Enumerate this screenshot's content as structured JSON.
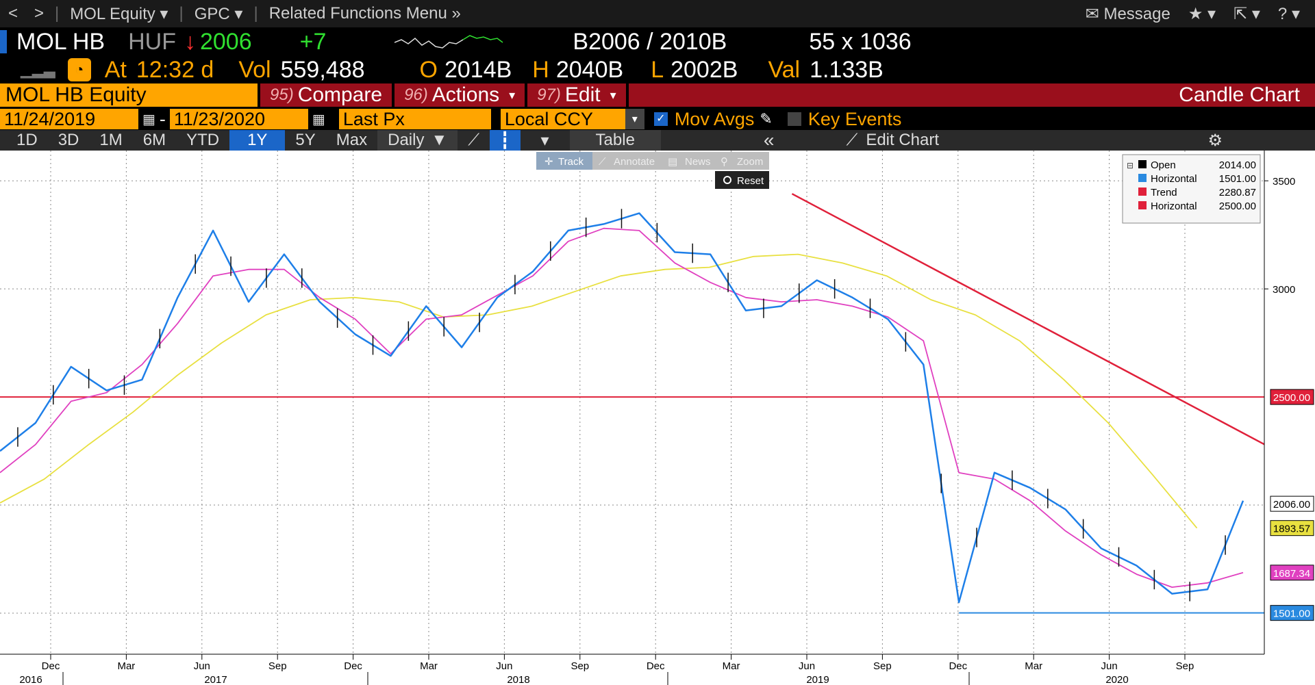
{
  "nav": {
    "back": "<",
    "forward": ">",
    "security": "MOL Equity",
    "function": "GPC",
    "related": "Related Functions Menu",
    "message": "Message",
    "star": "★",
    "export": "⇱",
    "help": "?"
  },
  "quote": {
    "ticker": "MOL HB",
    "currency": "HUF",
    "arrow": "↓",
    "last": "2006",
    "change": "+7",
    "bidask": "B2006 / 2010B",
    "size": "55 x 1036",
    "at": "At",
    "time": "12:32 d",
    "vol_label": "Vol",
    "vol": "559,488",
    "open_label": "O",
    "open": "2014B",
    "high_label": "H",
    "high": "2040B",
    "low_label": "L",
    "low": "2002B",
    "val_label": "Val",
    "val": "1.133B"
  },
  "functions": {
    "equity": "MOL HB Equity",
    "compare_num": "95)",
    "compare": "Compare",
    "actions_num": "96)",
    "actions": "Actions",
    "edit_num": "97)",
    "edit": "Edit",
    "title": "Candle Chart"
  },
  "dates": {
    "start": "11/24/2019",
    "dash": "-",
    "end": "11/23/2020",
    "field": "Last Px",
    "ccy": "Local CCY",
    "mov_avgs": "Mov Avgs",
    "key_events": "Key Events"
  },
  "periods": {
    "items": [
      "1D",
      "3D",
      "1M",
      "6M",
      "YTD",
      "1Y",
      "5Y",
      "Max"
    ],
    "active": "1Y",
    "freq": "Daily",
    "table": "Table",
    "edit_chart": "Edit Chart"
  },
  "chart_tools": {
    "track": "Track",
    "annotate": "Annotate",
    "news": "News",
    "zoom": "Zoom",
    "reset": "Reset"
  },
  "colors": {
    "price": "#1e7fe8",
    "ma_short": "#e040c0",
    "ma_long": "#e8e040",
    "horizontal_red": "#e0203a",
    "trend": "#e0203a",
    "horizontal_blue": "#2a8ae0"
  },
  "chart_data": {
    "type": "line",
    "x_ticks": [
      "Dec",
      "Mar",
      "Jun",
      "Sep",
      "Dec",
      "Mar",
      "Jun",
      "Sep",
      "Dec",
      "Mar",
      "Jun",
      "Sep",
      "Dec",
      "Mar",
      "Jun",
      "Sep"
    ],
    "years": [
      "2016",
      "2017",
      "2018",
      "2019",
      "2020"
    ],
    "y_ticks": [
      3500,
      3000
    ],
    "ylim": [
      1310,
      3640
    ],
    "grid": true,
    "legend": {
      "position": "top-right",
      "entries": [
        {
          "name": "Open",
          "value": "2014.00",
          "color": "#000000"
        },
        {
          "name": "Horizontal",
          "value": "1501.00",
          "color": "#2a8ae0"
        },
        {
          "name": "Trend",
          "value": "2280.87",
          "color": "#e0203a"
        },
        {
          "name": "Horizontal",
          "value": "2500.00",
          "color": "#e0203a"
        }
      ]
    },
    "price_labels": [
      {
        "text": "2006.00",
        "value": 2006,
        "bg": "#ffffff",
        "fg": "#000000"
      },
      {
        "text": "1893.57",
        "value": 1893.57,
        "bg": "#e8e040",
        "fg": "#000000"
      },
      {
        "text": "1687.34",
        "value": 1687.34,
        "bg": "#e040c0",
        "fg": "#ffffff"
      },
      {
        "text": "2500.00",
        "value": 2500,
        "bg": "#e0203a",
        "fg": "#ffffff"
      },
      {
        "text": "1501.00",
        "value": 1501,
        "bg": "#2a8ae0",
        "fg": "#ffffff"
      }
    ],
    "series": [
      {
        "values": [
          2250,
          2380,
          2640,
          2530,
          2580,
          2960,
          3270,
          2940,
          3160,
          2940,
          2790,
          2690,
          2920,
          2730,
          2960,
          3080,
          3270,
          3300,
          3350,
          3170,
          3160,
          2900,
          2920,
          3040,
          2960,
          2860,
          2650,
          1550,
          2150,
          2080,
          1980,
          1800,
          1720,
          1590,
          1610,
          2020
        ]
      },
      {
        "values": [
          2150,
          2280,
          2480,
          2520,
          2650,
          2840,
          3060,
          3090,
          3090,
          2960,
          2860,
          2700,
          2860,
          2880,
          2970,
          3060,
          3220,
          3280,
          3270,
          3120,
          3030,
          2960,
          2940,
          2950,
          2920,
          2870,
          2760,
          2150,
          2120,
          2020,
          1880,
          1770,
          1680,
          1620,
          1640,
          1687.34
        ]
      },
      {
        "values": [
          2010,
          2120,
          2280,
          2430,
          2600,
          2750,
          2880,
          2950,
          2960,
          2940,
          2870,
          2880,
          2920,
          2990,
          3060,
          3090,
          3100,
          3150,
          3160,
          3120,
          3060,
          2950,
          2880,
          2760,
          2580,
          2380,
          2140,
          1893.57
        ]
      }
    ],
    "x_index_range": [
      0,
      35
    ],
    "lines": {
      "horizontal_high": 2500,
      "horizontal_low": 1501,
      "trend_start": 3440,
      "trend_end": 2280.87
    }
  }
}
